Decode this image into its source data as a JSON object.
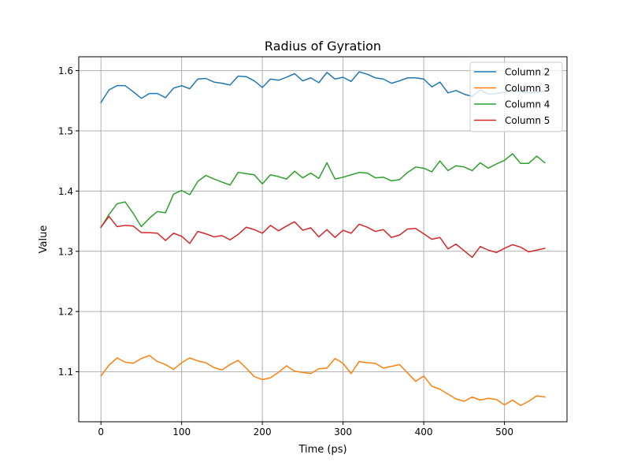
{
  "chart_data": {
    "type": "line",
    "title": "Radius of Gyration",
    "xlabel": "Time (ps)",
    "ylabel": "Value",
    "xlim": [
      -27.5,
      577.5
    ],
    "ylim": [
      1.017,
      1.623
    ],
    "xticks": [
      0,
      100,
      200,
      300,
      400,
      500
    ],
    "yticks": [
      1.1,
      1.2,
      1.3,
      1.4,
      1.5,
      1.6
    ],
    "xtick_labels": [
      "0",
      "100",
      "200",
      "300",
      "400",
      "500"
    ],
    "ytick_labels": [
      "1.1",
      "1.2",
      "1.3",
      "1.4",
      "1.5",
      "1.6"
    ],
    "grid": true,
    "legend_position": "top-right",
    "x": [
      0,
      10,
      20,
      30,
      40,
      50,
      60,
      70,
      80,
      90,
      100,
      110,
      120,
      130,
      140,
      150,
      160,
      170,
      180,
      190,
      200,
      210,
      220,
      230,
      240,
      250,
      260,
      270,
      280,
      290,
      300,
      310,
      320,
      330,
      340,
      350,
      360,
      370,
      380,
      390,
      400,
      410,
      420,
      430,
      440,
      450,
      460,
      470,
      480,
      490,
      500,
      510,
      520,
      530,
      540,
      550
    ],
    "series": [
      {
        "name": "Column 2",
        "color": "#1f77b4",
        "values": [
          1.547,
          1.568,
          1.575,
          1.575,
          1.565,
          1.554,
          1.562,
          1.562,
          1.555,
          1.571,
          1.575,
          1.57,
          1.586,
          1.587,
          1.581,
          1.579,
          1.576,
          1.591,
          1.59,
          1.583,
          1.572,
          1.586,
          1.584,
          1.589,
          1.595,
          1.583,
          1.588,
          1.58,
          1.597,
          1.586,
          1.589,
          1.582,
          1.598,
          1.594,
          1.588,
          1.586,
          1.579,
          1.583,
          1.588,
          1.588,
          1.586,
          1.573,
          1.581,
          1.563,
          1.567,
          1.561,
          1.557,
          1.568,
          1.561,
          1.562,
          1.564,
          1.567,
          1.565,
          1.563,
          1.564,
          1.566
        ]
      },
      {
        "name": "Column 3",
        "color": "#ff7f0e",
        "values": [
          1.093,
          1.111,
          1.123,
          1.116,
          1.114,
          1.122,
          1.127,
          1.117,
          1.112,
          1.104,
          1.115,
          1.123,
          1.118,
          1.115,
          1.107,
          1.103,
          1.112,
          1.119,
          1.106,
          1.092,
          1.087,
          1.09,
          1.099,
          1.11,
          1.101,
          1.099,
          1.097,
          1.105,
          1.106,
          1.122,
          1.114,
          1.097,
          1.117,
          1.115,
          1.114,
          1.106,
          1.109,
          1.112,
          1.098,
          1.084,
          1.093,
          1.076,
          1.071,
          1.063,
          1.055,
          1.051,
          1.058,
          1.053,
          1.056,
          1.054,
          1.045,
          1.053,
          1.044,
          1.051,
          1.06,
          1.058
        ]
      },
      {
        "name": "Column 4",
        "color": "#2ca02c",
        "values": [
          1.34,
          1.361,
          1.379,
          1.382,
          1.363,
          1.341,
          1.355,
          1.366,
          1.364,
          1.395,
          1.401,
          1.394,
          1.416,
          1.426,
          1.42,
          1.415,
          1.41,
          1.431,
          1.429,
          1.427,
          1.412,
          1.427,
          1.424,
          1.42,
          1.433,
          1.422,
          1.43,
          1.421,
          1.447,
          1.42,
          1.423,
          1.427,
          1.431,
          1.43,
          1.422,
          1.423,
          1.417,
          1.419,
          1.431,
          1.44,
          1.438,
          1.432,
          1.45,
          1.434,
          1.442,
          1.44,
          1.434,
          1.447,
          1.438,
          1.445,
          1.451,
          1.462,
          1.446,
          1.446,
          1.458,
          1.447
        ]
      },
      {
        "name": "Column 5",
        "color": "#d62728",
        "values": [
          1.34,
          1.358,
          1.341,
          1.343,
          1.342,
          1.331,
          1.331,
          1.33,
          1.318,
          1.33,
          1.325,
          1.313,
          1.333,
          1.329,
          1.324,
          1.326,
          1.319,
          1.328,
          1.34,
          1.336,
          1.33,
          1.343,
          1.334,
          1.342,
          1.349,
          1.335,
          1.339,
          1.324,
          1.336,
          1.323,
          1.335,
          1.33,
          1.345,
          1.34,
          1.333,
          1.336,
          1.323,
          1.327,
          1.337,
          1.338,
          1.329,
          1.32,
          1.323,
          1.304,
          1.312,
          1.301,
          1.29,
          1.308,
          1.302,
          1.298,
          1.305,
          1.311,
          1.307,
          1.299,
          1.302,
          1.305
        ]
      }
    ]
  }
}
